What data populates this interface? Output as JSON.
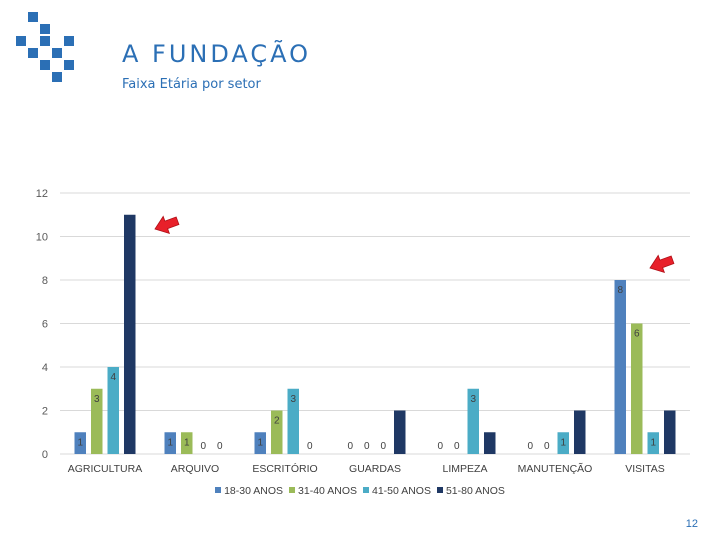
{
  "header": {
    "title": "A FUNDAÇÃO",
    "subtitle": "Faixa Etária por setor"
  },
  "page_number": "12",
  "colors": {
    "brand": "#2b6fb5",
    "arrow": "#e8202a",
    "series": [
      "#4f81bd",
      "#9bbb59",
      "#4bacc6",
      "#1f3864"
    ]
  },
  "icons": [
    "logo-icon",
    "arrow-icon"
  ],
  "chart_data": {
    "type": "bar",
    "title": "",
    "xlabel": "",
    "ylabel": "",
    "ylim": [
      0,
      12
    ],
    "yticks": [
      0,
      2,
      4,
      6,
      8,
      10,
      12
    ],
    "grid": true,
    "legend_position": "bottom",
    "categories": [
      "AGRICULTURA",
      "ARQUIVO",
      "ESCRITÓRIO",
      "GUARDAS",
      "LIMPEZA",
      "MANUTENÇÃO",
      "VISITAS"
    ],
    "series": [
      {
        "name": "18-30 ANOS",
        "values": [
          1,
          1,
          1,
          0,
          0,
          0,
          8
        ]
      },
      {
        "name": "31-40 ANOS",
        "values": [
          3,
          1,
          2,
          0,
          0,
          0,
          6
        ]
      },
      {
        "name": "41-50 ANOS",
        "values": [
          4,
          0,
          3,
          0,
          3,
          1,
          1
        ]
      },
      {
        "name": "51-80 ANOS",
        "values": [
          11,
          0,
          0,
          2,
          1,
          2,
          2
        ]
      }
    ],
    "data_labels": [
      [
        "1",
        "3",
        "4",
        ""
      ],
      [
        "1",
        "1",
        "0",
        "0"
      ],
      [
        "1",
        "2",
        "3",
        "0"
      ],
      [
        "0",
        "0",
        "0",
        ""
      ],
      [
        "0",
        "0",
        "3",
        ""
      ],
      [
        "0",
        "0",
        "1",
        ""
      ],
      [
        "8",
        "6",
        "1",
        ""
      ]
    ],
    "annotations": [
      "red arrow pointing at AGRICULTURA 51-80 ANOS bar",
      "red arrow pointing at VISITAS 18-30 ANOS bar"
    ]
  }
}
